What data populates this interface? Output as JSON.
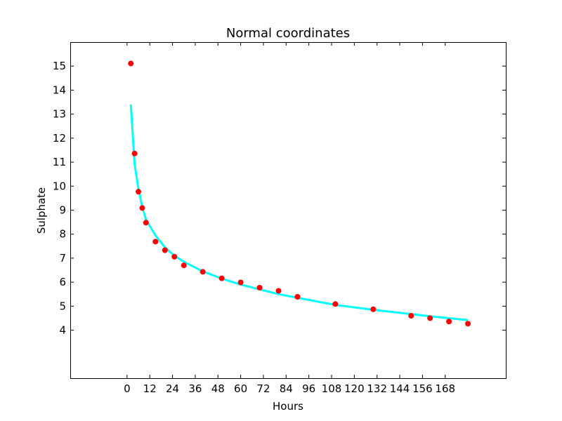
{
  "chart_data": {
    "type": "scatter",
    "title": "Normal coordinates",
    "xlabel": "Hours",
    "ylabel": "Sulphate",
    "xlim": [
      -30,
      200
    ],
    "ylim": [
      2,
      16
    ],
    "xticks": [
      0,
      12,
      24,
      36,
      48,
      60,
      72,
      84,
      96,
      108,
      120,
      132,
      144,
      156,
      168
    ],
    "yticks": [
      4,
      5,
      6,
      7,
      8,
      9,
      10,
      11,
      12,
      13,
      14,
      15
    ],
    "grid": false,
    "series": [
      {
        "type": "scatter",
        "color": "#ff0000",
        "x": [
          2,
          4,
          6,
          8,
          10,
          15,
          20,
          25,
          30,
          40,
          50,
          60,
          70,
          80,
          90,
          110,
          130,
          150,
          160,
          170,
          180
        ],
        "y": [
          15.11,
          11.36,
          9.77,
          9.09,
          8.48,
          7.69,
          7.33,
          7.06,
          6.7,
          6.43,
          6.16,
          5.99,
          5.77,
          5.64,
          5.39,
          5.09,
          4.87,
          4.6,
          4.5,
          4.36,
          4.27
        ]
      },
      {
        "type": "line",
        "color": "#00ffff",
        "x": [
          2,
          4,
          6,
          8,
          10,
          15,
          20,
          25,
          30,
          40,
          50,
          60,
          70,
          80,
          90,
          110,
          130,
          150,
          160,
          170,
          180
        ],
        "y": [
          13.4,
          10.9,
          9.9,
          9.15,
          8.6,
          7.95,
          7.45,
          7.1,
          6.85,
          6.45,
          6.15,
          5.9,
          5.7,
          5.5,
          5.35,
          5.05,
          4.85,
          4.67,
          4.58,
          4.5,
          4.42
        ]
      }
    ]
  }
}
